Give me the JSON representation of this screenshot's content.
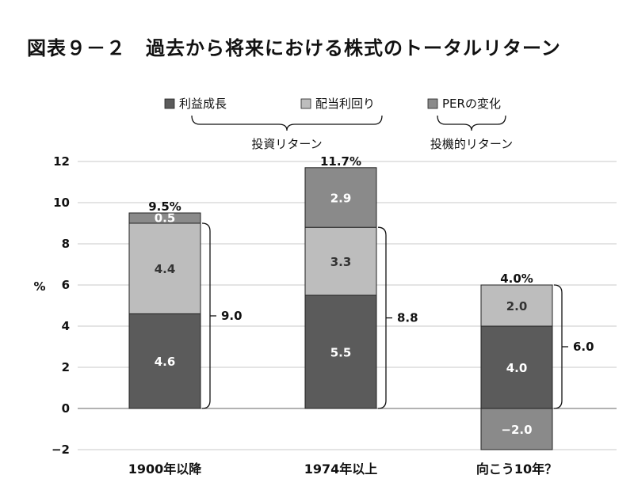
{
  "chart_data": {
    "type": "bar",
    "stacked": true,
    "title": "図表９－２　過去から将来における株式のトータルリターン",
    "ylabel": "%",
    "ylim": [
      -2,
      12
    ],
    "yticks": [
      -2,
      0,
      2,
      4,
      6,
      8,
      10,
      12
    ],
    "grid": true,
    "legend_position": "top",
    "categories": [
      "1900年以降",
      "1974年以上",
      "向こう10年？"
    ],
    "series": [
      {
        "name": "利益成長",
        "color": "#5b5b5b",
        "values": [
          4.6,
          5.5,
          4.0
        ],
        "labels": [
          "4.6",
          "5.5",
          "4.0"
        ]
      },
      {
        "name": "配当利回り",
        "color": "#bdbdbd",
        "values": [
          4.4,
          3.3,
          2.0
        ],
        "labels": [
          "4.4",
          "3.3",
          "2.0"
        ]
      },
      {
        "name": "PERの変化",
        "color": "#8a8a8a",
        "values": [
          0.5,
          2.9,
          -2.0
        ],
        "labels": [
          "0.5",
          "2.9",
          "−2.0"
        ]
      }
    ],
    "totals": [
      "9.5%",
      "11.7%",
      "4.0%"
    ],
    "investment_returns": [
      "9.0",
      "8.8",
      "6.0"
    ],
    "legend_groups": [
      {
        "label": "投資リターン",
        "series": [
          "利益成長",
          "配当利回り"
        ]
      },
      {
        "label": "投機的リターン",
        "series": [
          "PERの変化"
        ]
      }
    ]
  }
}
